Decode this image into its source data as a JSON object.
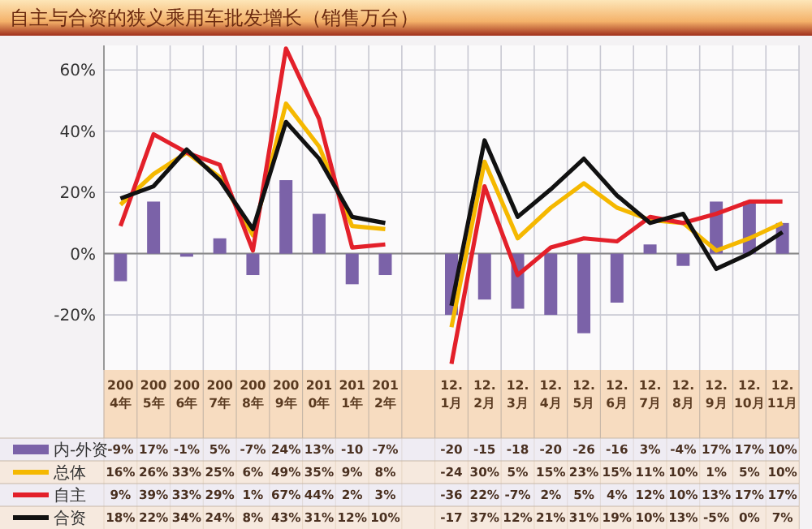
{
  "chart_data": {
    "type": "bar",
    "title": "自主与合资的狭义乘用车批发增长（销售万台）",
    "categories": [
      "2004年",
      "2005年",
      "2006年",
      "2007年",
      "2008年",
      "2009年",
      "2010年",
      "2011年",
      "2012年",
      null,
      "12.1月",
      "12.2月",
      "12.3月",
      "12.4月",
      "12.5月",
      "12.6月",
      "12.7月",
      "12.8月",
      "12.9月",
      "12.10月",
      "12.11月"
    ],
    "series": [
      {
        "name": "内-外资",
        "color": "#7b62a8",
        "values": [
          -9,
          17,
          -1,
          5,
          -7,
          24,
          13,
          -10,
          -7,
          null,
          -20,
          -15,
          -18,
          -20,
          -26,
          -16,
          3,
          -4,
          17,
          17,
          10
        ],
        "value_labels": [
          "-9%",
          "17%",
          "-1%",
          "5%",
          "-7%",
          "24%",
          "13%",
          "-10",
          "-7%",
          null,
          "-20",
          "-15",
          "-18",
          "-20",
          "-26",
          "-16",
          "3%",
          "-4%",
          "17%",
          "17%",
          "10%"
        ]
      },
      {
        "name": "总体",
        "type": "line",
        "color": "#f5b800",
        "values": [
          16,
          26,
          33,
          25,
          6,
          49,
          35,
          9,
          8,
          null,
          -24,
          30,
          5,
          15,
          23,
          15,
          11,
          10,
          1,
          5,
          10
        ],
        "value_labels": [
          "16%",
          "26%",
          "33%",
          "25%",
          "6%",
          "49%",
          "35%",
          "9%",
          "8%",
          null,
          "-24",
          "30%",
          "5%",
          "15%",
          "23%",
          "15%",
          "11%",
          "10%",
          "1%",
          "5%",
          "10%"
        ]
      },
      {
        "name": "自主",
        "type": "line",
        "color": "#e3202a",
        "values": [
          9,
          39,
          33,
          29,
          1,
          67,
          44,
          2,
          3,
          null,
          -36,
          22,
          -7,
          2,
          5,
          4,
          12,
          10,
          13,
          17,
          17
        ],
        "value_labels": [
          "9%",
          "39%",
          "33%",
          "29%",
          "1%",
          "67%",
          "44%",
          "2%",
          "3%",
          null,
          "-36",
          "22%",
          "-7%",
          "2%",
          "5%",
          "4%",
          "12%",
          "10%",
          "13%",
          "17%",
          "17%"
        ]
      },
      {
        "name": "合资",
        "type": "line",
        "color": "#111111",
        "values": [
          18,
          22,
          34,
          24,
          8,
          43,
          31,
          12,
          10,
          null,
          -17,
          37,
          12,
          21,
          31,
          19,
          10,
          13,
          -5,
          0,
          7
        ],
        "value_labels": [
          "18%",
          "22%",
          "34%",
          "24%",
          "8%",
          "43%",
          "31%",
          "12%",
          "10%",
          null,
          "-17",
          "37%",
          "12%",
          "21%",
          "31%",
          "19%",
          "10%",
          "13%",
          "-5%",
          "0%",
          "7%"
        ]
      }
    ],
    "ylim": [
      -38,
      68
    ],
    "yticks": [
      {
        "value": -20,
        "label": "-20%"
      },
      {
        "value": 0,
        "label": "0%"
      },
      {
        "value": 20,
        "label": "20%"
      },
      {
        "value": 40,
        "label": "40%"
      },
      {
        "value": 60,
        "label": "60%"
      }
    ],
    "grid": true,
    "legend": "bottom left",
    "line_style": "solid",
    "marker": "none"
  }
}
